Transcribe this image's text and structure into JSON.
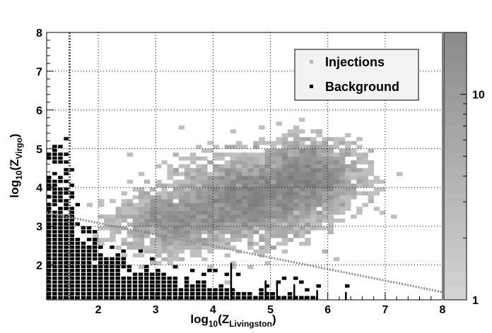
{
  "chart_data": {
    "type": "heatmap",
    "title": "",
    "xlabel": {
      "base": "log",
      "sub": "10",
      "open": "(Z",
      "var_sub": "Livingston",
      "close": ")"
    },
    "ylabel": {
      "base": "log",
      "sub": "10",
      "open": "(Z",
      "var_sub": "Virgo",
      "close": ")"
    },
    "xlim": [
      1.1,
      8.0
    ],
    "ylim": [
      1.1,
      8.0
    ],
    "x_ticks": [
      2,
      3,
      4,
      5,
      6,
      7,
      8
    ],
    "y_ticks": [
      2,
      3,
      4,
      5,
      6,
      7,
      8
    ],
    "grid": true,
    "legend_position": "top-right",
    "colorbar": {
      "scale": "log",
      "range": [
        1,
        20
      ],
      "ticks": [
        1,
        10
      ]
    },
    "series": [
      {
        "name": "Injections",
        "color": "#b4b4b4",
        "style": "2d-histogram",
        "core_clusters": [
          {
            "x_center": 4.6,
            "y_center": 3.7,
            "x_spread": 1.1,
            "y_spread": 0.7
          },
          {
            "x_center": 5.7,
            "y_center": 4.3,
            "x_spread": 0.8,
            "y_spread": 0.6
          },
          {
            "x_center": 3.3,
            "y_center": 3.1,
            "x_spread": 0.9,
            "y_spread": 0.5
          }
        ],
        "extent": {
          "x": [
            1.2,
            7.6
          ],
          "y": [
            1.2,
            6.0
          ]
        }
      },
      {
        "name": "Background",
        "color": "#000000",
        "style": "2d-histogram",
        "extent": {
          "x": [
            1.1,
            6.4
          ],
          "y": [
            1.1,
            5.1
          ]
        },
        "upper_envelope": [
          {
            "x": 1.1,
            "y": 5.1
          },
          {
            "x": 1.5,
            "y": 5.0
          },
          {
            "x": 1.6,
            "y": 3.3
          },
          {
            "x": 2.0,
            "y": 2.6
          },
          {
            "x": 2.5,
            "y": 2.2
          },
          {
            "x": 3.0,
            "y": 1.9
          },
          {
            "x": 3.5,
            "y": 1.7
          },
          {
            "x": 4.0,
            "y": 1.5
          },
          {
            "x": 4.5,
            "y": 1.4
          },
          {
            "x": 5.0,
            "y": 1.3
          },
          {
            "x": 5.5,
            "y": 1.25
          },
          {
            "x": 6.0,
            "y": 1.15
          },
          {
            "x": 6.4,
            "y": 1.15
          }
        ]
      }
    ],
    "cut_lines": [
      {
        "kind": "vertical",
        "x": 1.5,
        "color": "#555555"
      },
      {
        "kind": "sloped",
        "from": [
          1.1,
          3.35
        ],
        "to": [
          8.0,
          1.3
        ],
        "color": "#8a8a8a"
      }
    ],
    "legend_entries": [
      "Injections",
      "Background"
    ]
  }
}
